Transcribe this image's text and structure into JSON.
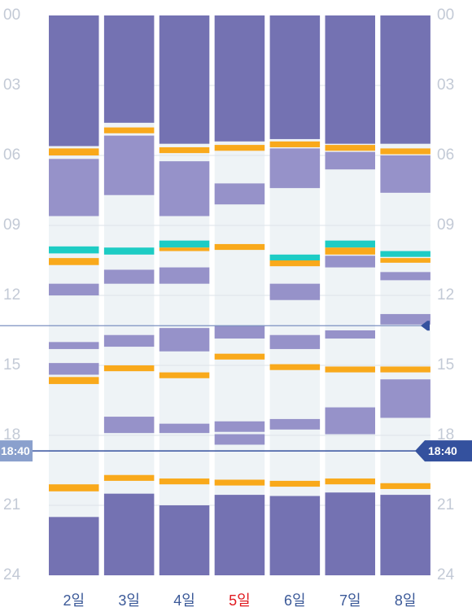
{
  "chart_data": {
    "type": "timeline",
    "hour_ticks": [
      "00",
      "03",
      "06",
      "09",
      "12",
      "15",
      "18",
      "21",
      "24"
    ],
    "marker_time": "18:40",
    "today_index": 3,
    "colors": {
      "background": "#ffffff",
      "column": "#eef3f6",
      "sleep": "#7472b2",
      "light": "#9692c9",
      "orange": "#f9a91b",
      "teal": "#1dccc4",
      "line": "#34519e",
      "line_light": "#7b90c1",
      "marker_left": "#8aa0cd",
      "marker_right": "#34519e",
      "axis": "#c3cad6",
      "day": "#3b5998",
      "today": "#e0191f"
    },
    "days": [
      {
        "label": "2일",
        "blocks": [
          {
            "kind": "sleep",
            "start": 0,
            "end": 5.6
          },
          {
            "kind": "orange",
            "start": 5.7,
            "end": 6.0
          },
          {
            "kind": "light",
            "start": 6.15,
            "end": 8.6
          },
          {
            "kind": "teal",
            "start": 9.9,
            "end": 10.2
          },
          {
            "kind": "orange",
            "start": 10.4,
            "end": 10.7
          },
          {
            "kind": "light",
            "start": 11.5,
            "end": 12.0
          },
          {
            "kind": "light",
            "start": 14.0,
            "end": 14.3
          },
          {
            "kind": "light",
            "start": 14.9,
            "end": 15.4
          },
          {
            "kind": "orange",
            "start": 15.5,
            "end": 15.8
          },
          {
            "kind": "orange",
            "start": 20.1,
            "end": 20.4
          },
          {
            "kind": "sleep",
            "start": 21.5,
            "end": 24
          }
        ]
      },
      {
        "label": "3일",
        "blocks": [
          {
            "kind": "sleep",
            "start": 0,
            "end": 4.6
          },
          {
            "kind": "orange",
            "start": 4.8,
            "end": 5.05
          },
          {
            "kind": "light",
            "start": 5.15,
            "end": 7.7
          },
          {
            "kind": "teal",
            "start": 9.95,
            "end": 10.25
          },
          {
            "kind": "light",
            "start": 10.9,
            "end": 11.5
          },
          {
            "kind": "light",
            "start": 13.7,
            "end": 14.2
          },
          {
            "kind": "orange",
            "start": 15.0,
            "end": 15.25
          },
          {
            "kind": "light",
            "start": 17.2,
            "end": 17.9
          },
          {
            "kind": "orange",
            "start": 19.7,
            "end": 19.95
          },
          {
            "kind": "sleep",
            "start": 20.5,
            "end": 24
          }
        ]
      },
      {
        "label": "4일",
        "blocks": [
          {
            "kind": "sleep",
            "start": 0,
            "end": 5.5
          },
          {
            "kind": "orange",
            "start": 5.65,
            "end": 5.9
          },
          {
            "kind": "light",
            "start": 6.25,
            "end": 8.6
          },
          {
            "kind": "teal",
            "start": 9.65,
            "end": 9.95
          },
          {
            "kind": "orange",
            "start": 9.95,
            "end": 10.1
          },
          {
            "kind": "light",
            "start": 10.8,
            "end": 11.5
          },
          {
            "kind": "light",
            "start": 13.4,
            "end": 14.4
          },
          {
            "kind": "orange",
            "start": 15.3,
            "end": 15.55
          },
          {
            "kind": "light",
            "start": 17.5,
            "end": 17.9
          },
          {
            "kind": "orange",
            "start": 19.85,
            "end": 20.1
          },
          {
            "kind": "sleep",
            "start": 21.0,
            "end": 24
          }
        ]
      },
      {
        "label": "5일",
        "blocks": [
          {
            "kind": "sleep",
            "start": 0,
            "end": 5.4
          },
          {
            "kind": "orange",
            "start": 5.55,
            "end": 5.8
          },
          {
            "kind": "orange",
            "start": 9.8,
            "end": 10.05
          },
          {
            "kind": "light",
            "start": 7.2,
            "end": 8.1
          },
          {
            "kind": "light",
            "start": 13.3,
            "end": 13.85
          },
          {
            "kind": "orange",
            "start": 14.5,
            "end": 14.75
          },
          {
            "kind": "light",
            "start": 17.4,
            "end": 17.85
          },
          {
            "kind": "light",
            "start": 17.95,
            "end": 18.4
          },
          {
            "kind": "orange",
            "start": 19.9,
            "end": 20.15
          },
          {
            "kind": "sleep",
            "start": 20.55,
            "end": 24
          }
        ]
      },
      {
        "label": "6일",
        "blocks": [
          {
            "kind": "sleep",
            "start": 0,
            "end": 5.3
          },
          {
            "kind": "orange",
            "start": 5.4,
            "end": 5.65
          },
          {
            "kind": "light",
            "start": 5.7,
            "end": 7.4
          },
          {
            "kind": "teal",
            "start": 10.25,
            "end": 10.5
          },
          {
            "kind": "orange",
            "start": 10.5,
            "end": 10.75
          },
          {
            "kind": "light",
            "start": 11.5,
            "end": 12.2
          },
          {
            "kind": "light",
            "start": 13.7,
            "end": 14.3
          },
          {
            "kind": "orange",
            "start": 14.95,
            "end": 15.2
          },
          {
            "kind": "light",
            "start": 17.3,
            "end": 17.75
          },
          {
            "kind": "orange",
            "start": 19.95,
            "end": 20.2
          },
          {
            "kind": "sleep",
            "start": 20.6,
            "end": 24
          }
        ]
      },
      {
        "label": "7일",
        "blocks": [
          {
            "kind": "sleep",
            "start": 0,
            "end": 5.5
          },
          {
            "kind": "orange",
            "start": 5.55,
            "end": 5.8
          },
          {
            "kind": "light",
            "start": 5.85,
            "end": 6.6
          },
          {
            "kind": "teal",
            "start": 9.65,
            "end": 9.95
          },
          {
            "kind": "orange",
            "start": 9.95,
            "end": 10.25
          },
          {
            "kind": "light",
            "start": 10.3,
            "end": 10.8
          },
          {
            "kind": "light",
            "start": 13.5,
            "end": 13.85
          },
          {
            "kind": "orange",
            "start": 15.05,
            "end": 15.3
          },
          {
            "kind": "light",
            "start": 16.8,
            "end": 17.95
          },
          {
            "kind": "orange",
            "start": 19.85,
            "end": 20.1
          },
          {
            "kind": "sleep",
            "start": 20.45,
            "end": 24
          }
        ]
      },
      {
        "label": "8일",
        "blocks": [
          {
            "kind": "sleep",
            "start": 0,
            "end": 5.5
          },
          {
            "kind": "orange",
            "start": 5.7,
            "end": 5.95
          },
          {
            "kind": "light",
            "start": 6.0,
            "end": 7.6
          },
          {
            "kind": "teal",
            "start": 10.1,
            "end": 10.35
          },
          {
            "kind": "orange",
            "start": 10.4,
            "end": 10.6
          },
          {
            "kind": "light",
            "start": 11.0,
            "end": 11.35
          },
          {
            "kind": "light",
            "start": 12.8,
            "end": 13.25
          },
          {
            "kind": "orange",
            "start": 15.05,
            "end": 15.3
          },
          {
            "kind": "light",
            "start": 15.6,
            "end": 17.25
          },
          {
            "kind": "orange",
            "start": 20.05,
            "end": 20.3
          },
          {
            "kind": "sleep",
            "start": 20.55,
            "end": 24
          }
        ]
      }
    ],
    "guide_lines": [
      13.3
    ],
    "now_hour": 18.667
  }
}
